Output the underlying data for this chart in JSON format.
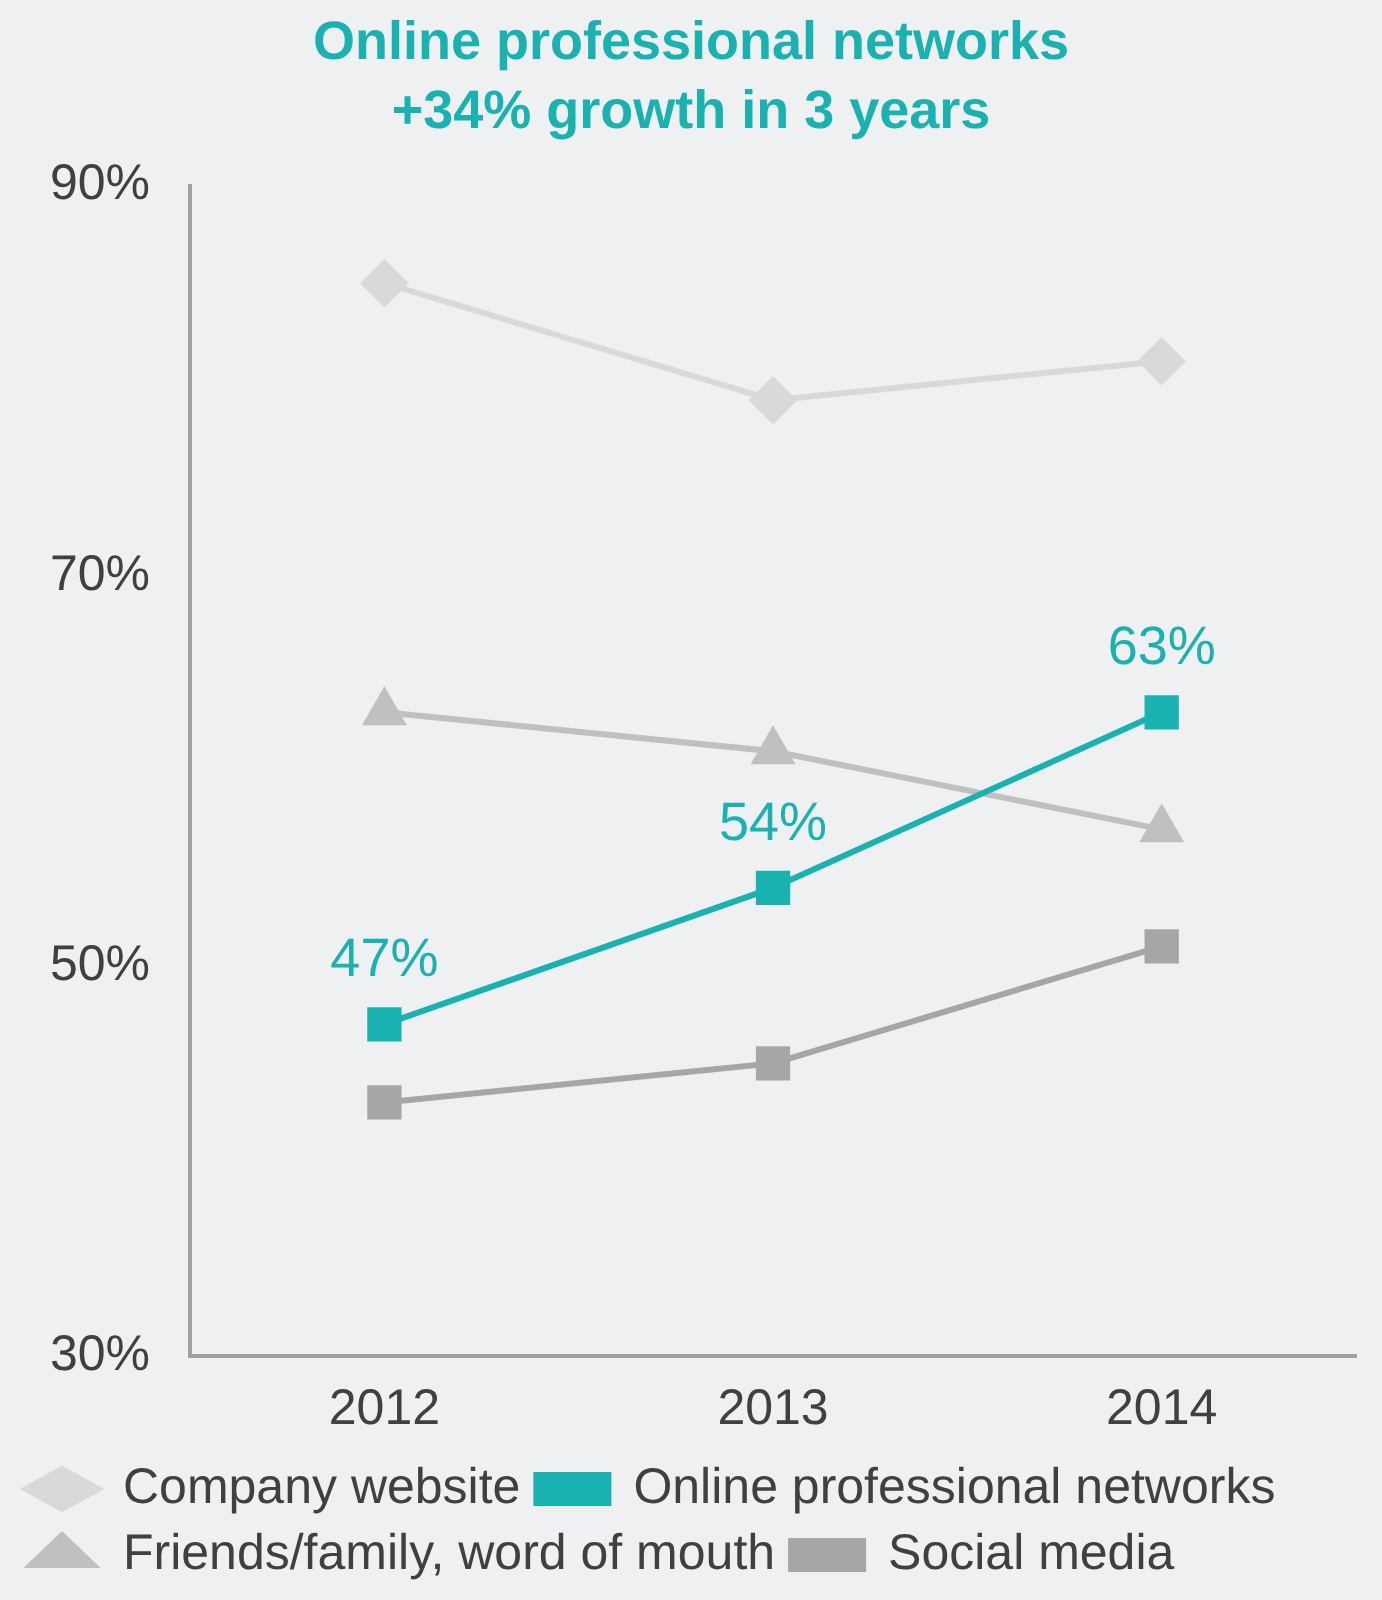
{
  "chart_data": {
    "type": "line",
    "title": "Online professional networks",
    "subtitle": "+34% growth in 3 years",
    "categories": [
      "2012",
      "2013",
      "2014"
    ],
    "series": [
      {
        "name": "Company website",
        "color": "#d9d9d9",
        "marker": "diamond",
        "values": [
          85,
          79,
          81
        ]
      },
      {
        "name": "Online professional networks",
        "color": "#19b2b0",
        "marker": "square",
        "values": [
          47,
          54,
          63
        ],
        "value_labels": [
          "47%",
          "54%",
          "63%"
        ]
      },
      {
        "name": "Friends/family, word of mouth",
        "color": "#c0c0c0",
        "marker": "triangle",
        "values": [
          63,
          61,
          57
        ]
      },
      {
        "name": "Social media",
        "color": "#a6a6a6",
        "marker": "square",
        "values": [
          43,
          45,
          51
        ]
      }
    ],
    "ylim": [
      30,
      90
    ],
    "yticks": [
      {
        "value": 30,
        "label": "30%"
      },
      {
        "value": 50,
        "label": "50%"
      },
      {
        "value": 70,
        "label": "70%"
      },
      {
        "value": 90,
        "label": "90%"
      }
    ],
    "grid": false,
    "legend": "bottom",
    "line_style": "solid"
  }
}
